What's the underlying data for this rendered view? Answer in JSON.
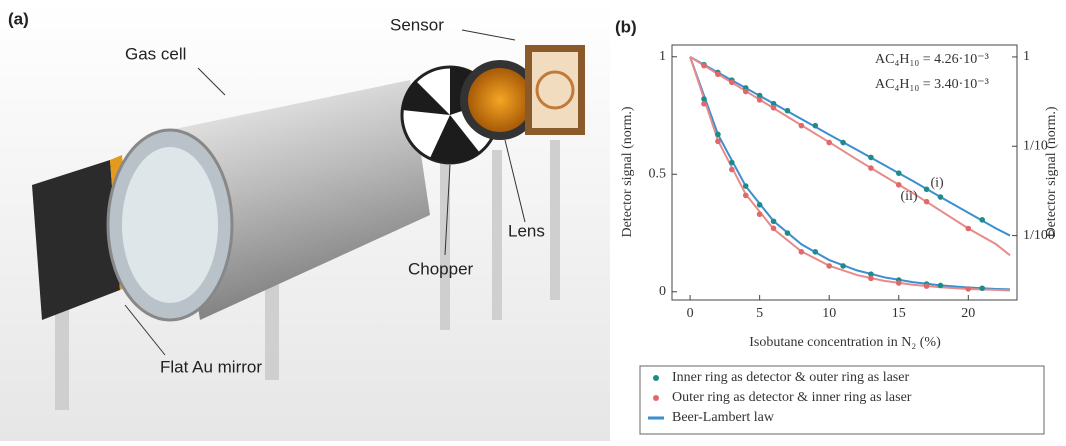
{
  "panel_a": {
    "label": "(a)",
    "gas_cell": "Gas cell",
    "sensor": "Sensor",
    "lens": "Lens",
    "chopper": "Chopper",
    "mirror": "Flat Au mirror"
  },
  "chart_data": {
    "type": "scatter",
    "label": "(b)",
    "x_label": "Isobutane concentration in N₂ (%)",
    "y_label": "Detector signal (norm.)",
    "y2_label": "Detector signal (norm.)",
    "xlim": [
      -1.3,
      23.5
    ],
    "xticks": [
      0,
      5,
      10,
      15,
      20
    ],
    "ylim": [
      -0.035,
      1.05
    ],
    "yticks": [
      0,
      0.5,
      1
    ],
    "y2lim": [
      0.0019,
      1.36
    ],
    "y2_scale": "log",
    "y2ticks": [
      1,
      {
        "value": 0.1,
        "label": "1/10"
      },
      {
        "value": 0.01,
        "label": "1/100"
      }
    ],
    "annotations": [
      "AC₄H₁₀ = 4.26·10⁻³",
      "AC₄H₁₀ = 3.40·10⁻³"
    ],
    "series": [
      {
        "name": "Inner ring as detector & outer ring as laser",
        "color": "#1e8a8a",
        "x": [
          1,
          2,
          3,
          4,
          5,
          6,
          7,
          9,
          11,
          13,
          15,
          17,
          18,
          21
        ],
        "values": [
          0.82,
          0.67,
          0.55,
          0.45,
          0.37,
          0.3,
          0.25,
          0.17,
          0.11,
          0.075,
          0.05,
          0.033,
          0.027,
          0.015
        ]
      },
      {
        "name": "Outer ring as detector & inner ring as laser",
        "color": "#e0686a",
        "x": [
          1,
          2,
          3,
          4,
          5,
          6,
          8,
          10,
          13,
          15,
          17,
          20
        ],
        "values": [
          0.8,
          0.64,
          0.52,
          0.41,
          0.33,
          0.27,
          0.17,
          0.11,
          0.057,
          0.037,
          0.024,
          0.012
        ]
      },
      {
        "name": "Beer-Lambert law",
        "color": "#3a8fd0",
        "fits": [
          {
            "label": "(i)",
            "x": [
              0,
              2,
              4,
              6,
              8,
              10,
              12,
              14,
              16,
              18,
              20,
              22,
              23
            ],
            "values": [
              1,
              0.67,
              0.449,
              0.301,
              0.202,
              0.135,
              0.091,
              0.061,
              0.041,
              0.027,
              0.018,
              0.012,
              0.01
            ]
          },
          {
            "label": "(ii)",
            "x": [
              0,
              2,
              4,
              6,
              8,
              10,
              12,
              14,
              16,
              18,
              20,
              22,
              23
            ],
            "values": [
              1,
              0.644,
              0.415,
              0.267,
              0.172,
              0.111,
              0.071,
              0.046,
              0.03,
              0.019,
              0.012,
              0.008,
              0.006
            ]
          }
        ]
      }
    ]
  }
}
